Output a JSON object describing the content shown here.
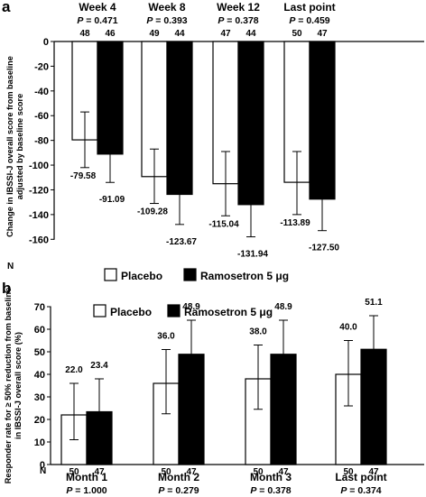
{
  "chart_data": [
    {
      "panel_label": "a",
      "type": "bar",
      "ylabel": "Change in IBSSI-J overall score from baseline adjusted by baseline score",
      "ylim": [
        -170,
        0
      ],
      "yticks": [
        0,
        -20,
        -40,
        -60,
        -80,
        -100,
        -120,
        -140,
        -160
      ],
      "n_label": "N",
      "categories": [
        {
          "name": "Week 4",
          "p": "P = 0.471",
          "n": [
            "48",
            "46"
          ]
        },
        {
          "name": "Week 8",
          "p": "P = 0.393",
          "n": [
            "49",
            "44"
          ]
        },
        {
          "name": "Week 12",
          "p": "P = 0.378",
          "n": [
            "47",
            "44"
          ]
        },
        {
          "name": "Last point",
          "p": "P = 0.459",
          "n": [
            "50",
            "47"
          ]
        }
      ],
      "series": [
        {
          "name": "Placebo",
          "color": "#ffffff",
          "values": [
            -79.58,
            -109.28,
            -115.04,
            -113.89
          ],
          "err": [
            [
              -102,
              -57
            ],
            [
              -131,
              -87
            ],
            [
              -141,
              -89
            ],
            [
              -140,
              -89
            ]
          ],
          "labels": [
            "-79.58",
            "-109.28",
            "-115.04",
            "-113.89"
          ]
        },
        {
          "name": "Ramosetron 5 μg",
          "color": "#000000",
          "values": [
            -91.09,
            -123.67,
            -131.94,
            -127.5
          ],
          "err": [
            [
              -114,
              -68
            ],
            [
              -148,
              -100
            ],
            [
              -158,
              -105
            ],
            [
              -153,
              -102
            ]
          ],
          "labels": [
            "-91.09",
            "-123.67",
            "-131.94",
            "-127.50"
          ]
        }
      ],
      "legend": "bottom"
    },
    {
      "panel_label": "b",
      "type": "bar",
      "ylabel": "Responder rate for ≥ 50% reduction from baseline in IBSSI-J overall score (%)",
      "ylim": [
        0,
        70
      ],
      "yticks": [
        0,
        10,
        20,
        30,
        40,
        50,
        60,
        70
      ],
      "n_label": "N",
      "categories": [
        {
          "name": "Month 1",
          "p": "P = 1.000",
          "n": [
            "50",
            "47"
          ]
        },
        {
          "name": "Month 2",
          "p": "P = 0.279",
          "n": [
            "50",
            "47"
          ]
        },
        {
          "name": "Month 3",
          "p": "P = 0.378",
          "n": [
            "50",
            "47"
          ]
        },
        {
          "name": "Last point",
          "p": "P = 0.374",
          "n": [
            "50",
            "47"
          ]
        }
      ],
      "series": [
        {
          "name": "Placebo",
          "color": "#ffffff",
          "values": [
            22.0,
            36.0,
            38.0,
            40.0
          ],
          "err": [
            [
              11,
              36
            ],
            [
              22.5,
              51
            ],
            [
              24.5,
              53
            ],
            [
              26,
              55
            ]
          ],
          "labels": [
            "22.0",
            "36.0",
            "38.0",
            "40.0"
          ]
        },
        {
          "name": "Ramosetron 5 μg",
          "color": "#000000",
          "values": [
            23.4,
            48.9,
            48.9,
            51.1
          ],
          "err": [
            [
              12,
              38
            ],
            [
              34,
              64
            ],
            [
              34,
              64
            ],
            [
              36,
              66
            ]
          ],
          "labels": [
            "23.4",
            "48.9",
            "48.9",
            "51.1"
          ]
        }
      ],
      "legend": "top"
    }
  ]
}
